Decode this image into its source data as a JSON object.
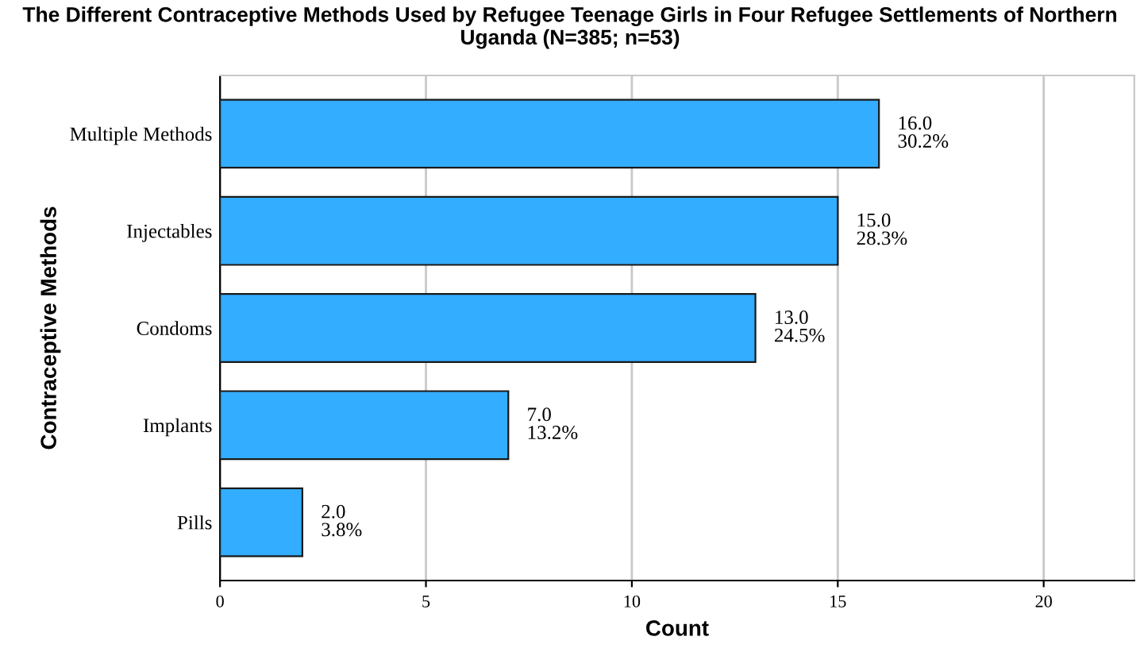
{
  "chart_data": {
    "type": "bar",
    "orientation": "horizontal",
    "title": "The Different Contraceptive Methods Used by Refugee Teenage Girls in Four Refugee Settlements of Northern Uganda (N=385; n=53)",
    "xlabel": "Count",
    "ylabel": "Contraceptive Methods",
    "categories": [
      "Multiple Methods",
      "Injectables",
      "Condoms",
      "Implants",
      "Pills"
    ],
    "values": [
      16.0,
      15.0,
      13.0,
      7.0,
      2.0
    ],
    "value_labels": [
      "16.0\n30.2%",
      "15.0\n28.3%",
      "13.0\n24.5%",
      "7.0\n13.2%",
      "2.0\n3.8%"
    ],
    "color": "#33adff",
    "xlim": [
      0,
      22.2
    ],
    "xticks": [
      0,
      5,
      10,
      15,
      20
    ],
    "grid": "x",
    "legend": false
  }
}
